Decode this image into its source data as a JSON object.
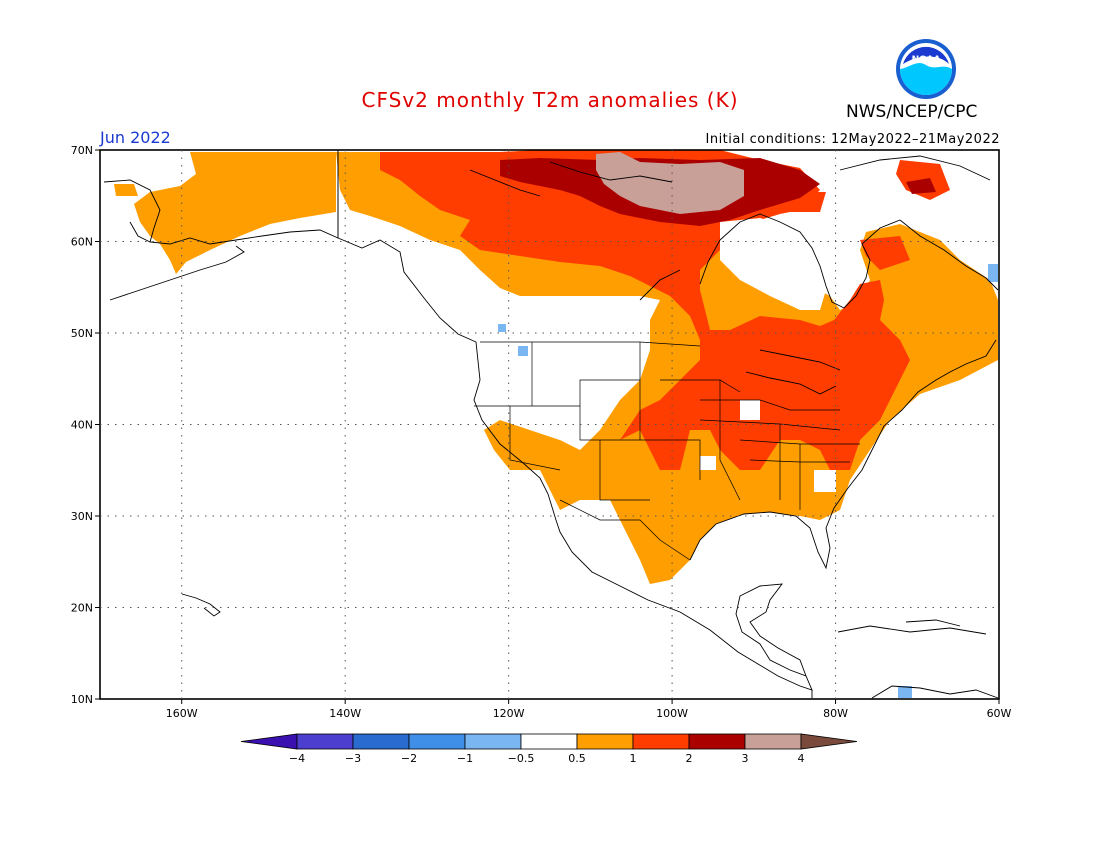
{
  "header": {
    "title": "CFSv2 monthly T2m anomalies (K)",
    "title_color": "#e00000",
    "agency": "NWS/NCEP/CPC",
    "logo_text": "NOAA",
    "month": "Jun 2022",
    "month_color": "#1a3ad0",
    "initial_conditions": "Initial conditions: 12May2022–21May2022"
  },
  "axes": {
    "lat_labels": [
      "70N",
      "60N",
      "50N",
      "40N",
      "30N",
      "20N",
      "10N"
    ],
    "lon_labels": [
      "160W",
      "140W",
      "120W",
      "100W",
      "80W",
      "60W"
    ],
    "lat_range": [
      10,
      70
    ],
    "lon_range": [
      -170,
      -60
    ]
  },
  "colorbar": {
    "labels": [
      "−4",
      "−3",
      "−2",
      "−1",
      "−0.5",
      "0.5",
      "1",
      "2",
      "3",
      "4"
    ],
    "colors": [
      "#3a10b0",
      "#4c3fd0",
      "#2a6bd0",
      "#3f8ee8",
      "#7ab6f2",
      "#ffffff",
      "#ff9e00",
      "#ff3d00",
      "#aa0000",
      "#c8a098",
      "#7a4a3c"
    ]
  },
  "legend_colors": {
    "ocean_land": "#ffffff",
    "coast": "#000000"
  }
}
